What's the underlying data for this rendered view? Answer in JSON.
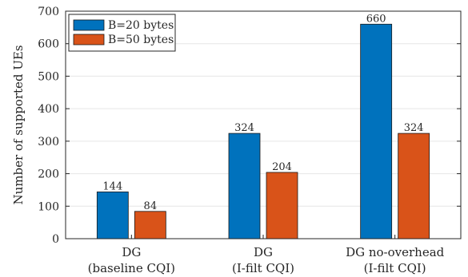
{
  "chart_data": {
    "type": "bar",
    "categories": [
      [
        "DG",
        "(baseline CQI)"
      ],
      [
        "DG",
        "(I-filt CQI)"
      ],
      [
        "DG no-overhead",
        "(I-filt CQI)"
      ]
    ],
    "series": [
      {
        "name": "B=20 bytes",
        "values": [
          144,
          324,
          660
        ],
        "color": "#0072BD"
      },
      {
        "name": "B=50 bytes",
        "values": [
          84,
          204,
          324
        ],
        "color": "#D95319"
      }
    ],
    "title": "",
    "xlabel": "",
    "ylabel": "Number of supported UEs",
    "ylim": [
      0,
      700
    ],
    "yticks": [
      0,
      100,
      200,
      300,
      400,
      500,
      600,
      700
    ],
    "grid": "horizontal",
    "legend": "top-left",
    "data_labels": true
  }
}
